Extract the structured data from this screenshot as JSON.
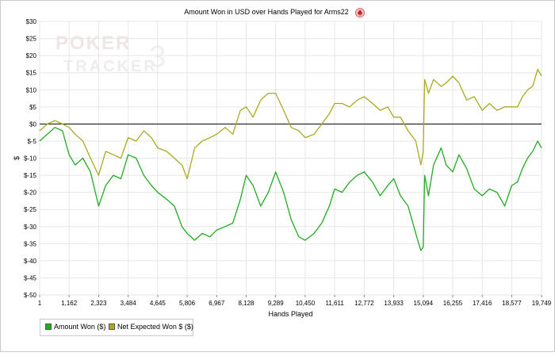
{
  "chart_data": {
    "type": "line",
    "title": "Amount Won in USD over Hands Played for Arms22",
    "title_icon": "poker-spade-icon",
    "watermark": "POKER TRACKER 3",
    "xlabel": "Hands Played",
    "ylabel": "$",
    "xlim": [
      1,
      19749
    ],
    "ylim": [
      -50,
      30
    ],
    "x_ticks": [
      1,
      1162,
      2323,
      3484,
      4645,
      5806,
      6967,
      8128,
      9289,
      10450,
      11611,
      12772,
      13933,
      15094,
      16255,
      17416,
      18577,
      19749
    ],
    "x_tick_labels": [
      "1",
      "1,162",
      "2,323",
      "3,484",
      "4,645",
      "5,806",
      "6,967",
      "8,128",
      "9,289",
      "10,450",
      "11,611",
      "12,772",
      "13,933",
      "15,094",
      "16,255",
      "17,416",
      "18,577",
      "19,749"
    ],
    "y_ticks": [
      30,
      25,
      20,
      15,
      10,
      5,
      0,
      -5,
      -10,
      -15,
      -20,
      -25,
      -30,
      -35,
      -40,
      -45,
      -50
    ],
    "y_tick_labels": [
      "$30",
      "$25",
      "$20",
      "$15",
      "$10",
      "$5",
      "$0",
      "$-5",
      "$-10",
      "$-15",
      "$-20",
      "$-25",
      "$-30",
      "$-35",
      "$-40",
      "$-45",
      "$-50"
    ],
    "grid": true,
    "legend_position": "bottom-left",
    "colors": {
      "amount_won": "#22aa22",
      "net_expected": "#aaaa22",
      "grid": "#e6e6e6",
      "zero_line": "#000000"
    },
    "series": [
      {
        "name": "Amount Won ($)",
        "x": [
          1,
          300,
          600,
          900,
          1162,
          1400,
          1700,
          2000,
          2323,
          2600,
          2900,
          3200,
          3484,
          3800,
          4100,
          4400,
          4645,
          5000,
          5300,
          5600,
          5806,
          6100,
          6400,
          6700,
          6967,
          7300,
          7600,
          7900,
          8128,
          8400,
          8700,
          9000,
          9289,
          9600,
          9900,
          10200,
          10450,
          10800,
          11100,
          11400,
          11611,
          11900,
          12200,
          12500,
          12772,
          13100,
          13400,
          13700,
          13933,
          14200,
          14500,
          14800,
          15000,
          15094,
          15150,
          15300,
          15500,
          15800,
          16000,
          16255,
          16500,
          16800,
          17100,
          17416,
          17700,
          18000,
          18300,
          18577,
          18800,
          19000,
          19200,
          19400,
          19600,
          19749
        ],
        "values": [
          -5,
          -3,
          -1,
          -2,
          -9,
          -12,
          -10,
          -14,
          -24,
          -18,
          -15,
          -16,
          -9,
          -10,
          -15,
          -18,
          -20,
          -22,
          -24,
          -30,
          -32,
          -34,
          -32,
          -33,
          -31,
          -30,
          -29,
          -22,
          -15,
          -18,
          -24,
          -20,
          -14,
          -20,
          -28,
          -33,
          -34,
          -32,
          -29,
          -24,
          -19,
          -20,
          -17,
          -15,
          -14,
          -17,
          -21,
          -18,
          -16,
          -21,
          -24,
          -32,
          -37,
          -36,
          -15,
          -21,
          -12,
          -7,
          -12,
          -14,
          -9,
          -13,
          -19,
          -21,
          -19,
          -20,
          -24,
          -18,
          -17,
          -13,
          -10,
          -8,
          -5,
          -7
        ]
      },
      {
        "name": "Net Expected Won $ ($)",
        "x": [
          1,
          300,
          600,
          900,
          1162,
          1400,
          1700,
          2000,
          2323,
          2600,
          2900,
          3200,
          3484,
          3800,
          4100,
          4400,
          4645,
          5000,
          5300,
          5600,
          5806,
          6100,
          6400,
          6700,
          6967,
          7300,
          7600,
          7900,
          8128,
          8400,
          8700,
          9000,
          9289,
          9600,
          9900,
          10200,
          10450,
          10800,
          11100,
          11400,
          11611,
          11900,
          12200,
          12500,
          12772,
          13100,
          13400,
          13700,
          13933,
          14200,
          14500,
          14800,
          15000,
          15094,
          15150,
          15300,
          15500,
          15800,
          16000,
          16255,
          16500,
          16800,
          17100,
          17416,
          17700,
          18000,
          18300,
          18577,
          18800,
          19000,
          19200,
          19400,
          19600,
          19749
        ],
        "values": [
          -2,
          0,
          1,
          0,
          -1,
          -3,
          -5,
          -10,
          -15,
          -8,
          -9,
          -10,
          -4,
          -5,
          -2,
          -4,
          -7,
          -8,
          -10,
          -12,
          -16,
          -7,
          -5,
          -4,
          -3,
          -1,
          -3,
          4,
          5,
          2,
          7,
          9,
          9,
          4,
          -1,
          -2,
          -4,
          -3,
          0,
          3,
          6,
          6,
          5,
          7,
          8,
          6,
          4,
          5,
          2,
          2,
          -2,
          -5,
          -12,
          -8,
          13,
          9,
          13,
          11,
          12,
          14,
          12,
          7,
          8,
          4,
          6,
          4,
          5,
          5,
          5,
          8,
          10,
          11,
          16,
          14
        ]
      }
    ]
  },
  "legend": {
    "amount_won_label": "Amount Won ($)",
    "net_expected_label": "Net Expected Won $ ($)"
  }
}
